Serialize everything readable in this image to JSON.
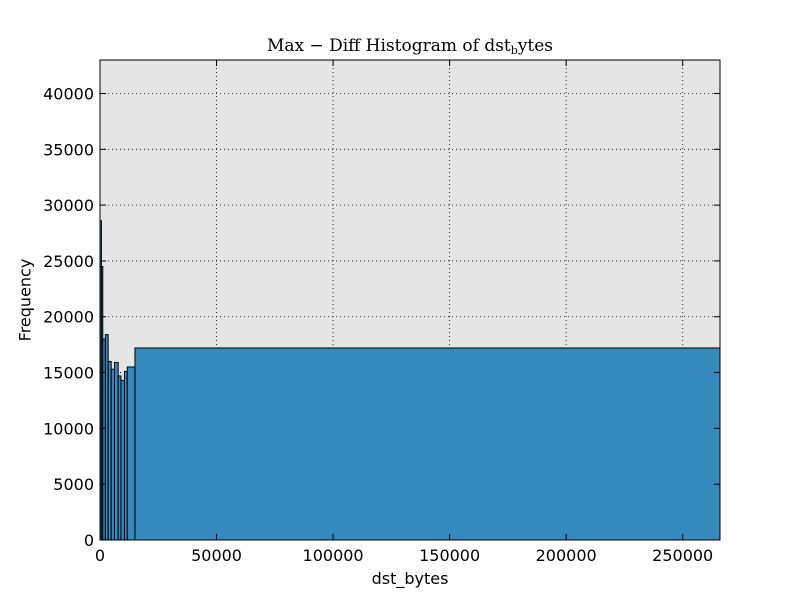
{
  "chart_data": {
    "type": "bar",
    "title_main": "Max − Diff Histogram of dst",
    "title_sub": "b",
    "title_tail": "ytes",
    "xlabel": "dst_bytes",
    "ylabel": "Frequency",
    "xlim": [
      0,
      266000
    ],
    "ylim": [
      0,
      43000
    ],
    "xticks": [
      0,
      50000,
      100000,
      150000,
      200000,
      250000
    ],
    "yticks": [
      0,
      5000,
      10000,
      15000,
      20000,
      25000,
      30000,
      35000,
      40000
    ],
    "grid": true,
    "bins": [
      {
        "x0": 0,
        "x1": 600,
        "value": 28600
      },
      {
        "x0": 600,
        "x1": 1200,
        "value": 24500
      },
      {
        "x0": 1200,
        "x1": 2300,
        "value": 18000
      },
      {
        "x0": 2300,
        "x1": 3500,
        "value": 18400
      },
      {
        "x0": 3500,
        "x1": 4800,
        "value": 16000
      },
      {
        "x0": 4800,
        "x1": 6200,
        "value": 15300
      },
      {
        "x0": 6200,
        "x1": 7800,
        "value": 15900
      },
      {
        "x0": 7800,
        "x1": 9000,
        "value": 14700
      },
      {
        "x0": 9000,
        "x1": 10500,
        "value": 14300
      },
      {
        "x0": 10500,
        "x1": 11700,
        "value": 15100
      },
      {
        "x0": 11700,
        "x1": 15000,
        "value": 15500
      },
      {
        "x0": 15000,
        "x1": 266000,
        "value": 17200
      }
    ],
    "colors": {
      "bar_fill": "#348abd",
      "plot_background": "#e5e5e5",
      "grid": "#000000"
    }
  }
}
